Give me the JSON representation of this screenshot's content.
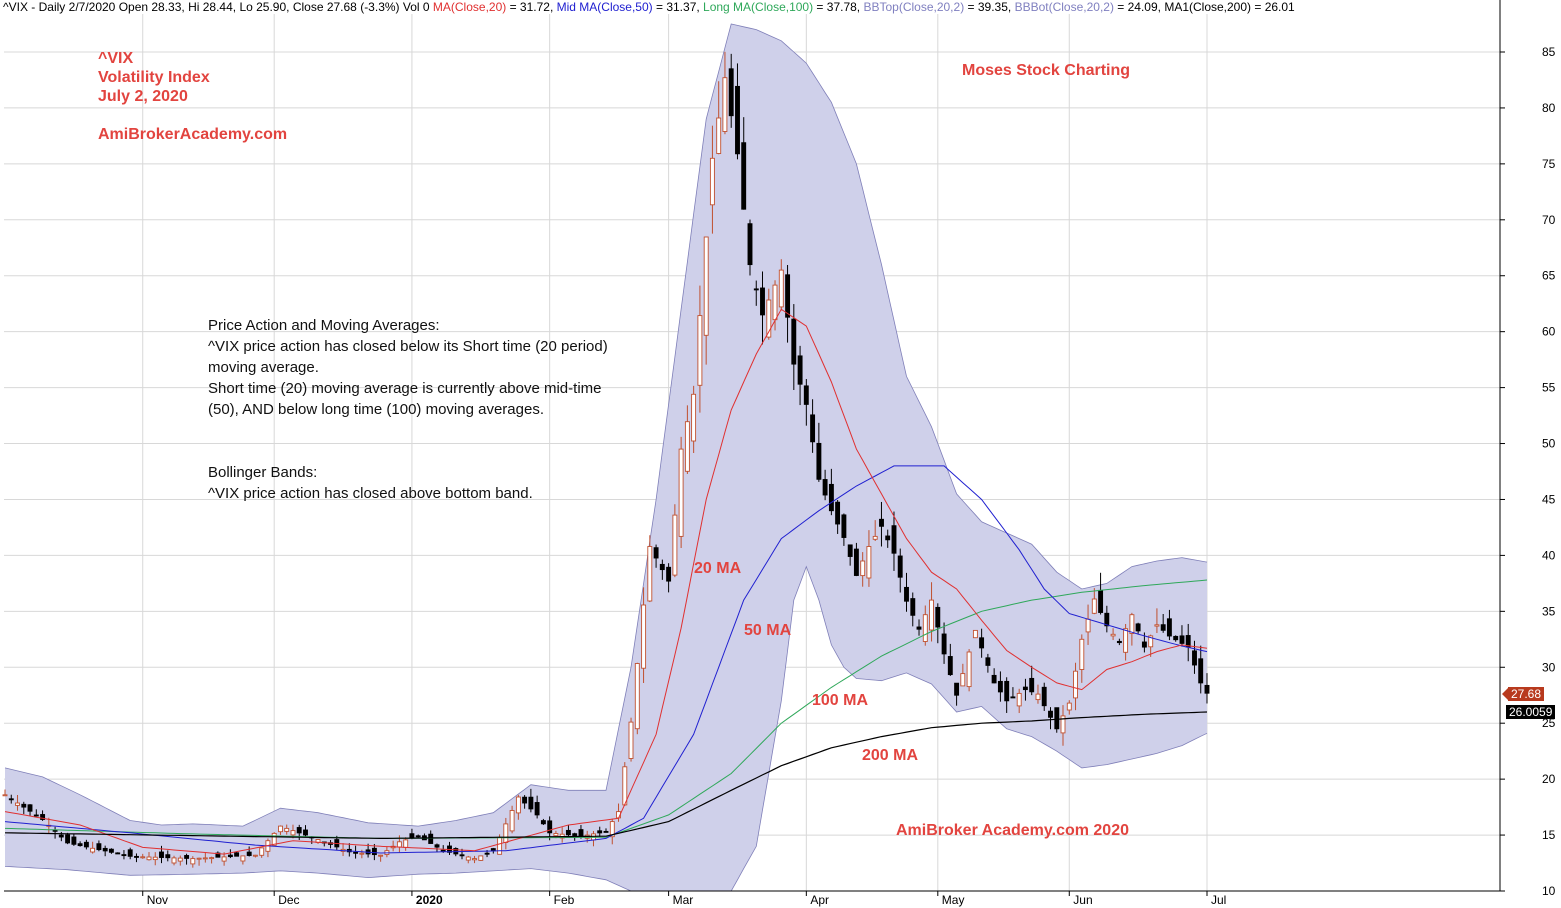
{
  "header": {
    "segments": [
      {
        "text": "^VIX - Daily 2/7/2020 Open 28.33, Hi 28.44, Lo 25.90, Close 27.68 (-3.3%) Vol 0 ",
        "color": "#000000"
      },
      {
        "text": "MA(Close,20)",
        "color": "#e03030"
      },
      {
        "text": " = 31.72, ",
        "color": "#000000"
      },
      {
        "text": "Mid MA(Close,50)",
        "color": "#2020d0"
      },
      {
        "text": " = 31.37, ",
        "color": "#000000"
      },
      {
        "text": "Long MA(Close,100)",
        "color": "#2fa85a"
      },
      {
        "text": " = 37.78, ",
        "color": "#000000"
      },
      {
        "text": "BBTop(Close,20,2)",
        "color": "#8080c0"
      },
      {
        "text": " = 39.35, ",
        "color": "#000000"
      },
      {
        "text": "BBBot(Close,20,2)",
        "color": "#8080c0"
      },
      {
        "text": " = 24.09, MA1(Close,200) = 26.01",
        "color": "#000000"
      }
    ]
  },
  "annotations": {
    "title_lines": [
      "^VIX",
      "Volatility Index",
      "July 2, 2020"
    ],
    "site": "AmiBroker Academy.com",
    "site_top": "AmiBrokerAcademy.com",
    "brand": "Moses Stock Charting",
    "footer": "AmiBroker Academy.com 2020",
    "price_action_lines": [
      "Price Action and Moving Averages:",
      "^VIX price action has closed below its Short time (20 period)",
      "moving average.",
      "Short time (20) moving average is currently above mid-time",
      "(50), AND below long time (100) moving averages."
    ],
    "bollinger_lines": [
      "Bollinger Bands:",
      "^VIX price action has closed above bottom band."
    ],
    "ma_labels": [
      "20 MA",
      "50 MA",
      "100 MA",
      "200 MA"
    ],
    "last_price": "27.68",
    "ma200_value": "26.0059"
  },
  "colors": {
    "accent_red": "#e2443f",
    "ma20": "#e03030",
    "ma50": "#2020d0",
    "ma100": "#2fa85a",
    "ma200": "#000000",
    "band_fill": "#cfd0ea",
    "band_edge": "#7f7fb8",
    "bull_candle": "#c0502f",
    "bear_candle": "#000000",
    "grid": "#d8d8d8",
    "price_tag_bg": "#b83a1e"
  },
  "chart_data": {
    "type": "candlestick",
    "title": "^VIX",
    "ylim": [
      10,
      88
    ],
    "y_ticks": [
      10,
      15,
      20,
      25,
      30,
      35,
      40,
      45,
      50,
      55,
      60,
      65,
      70,
      75,
      80,
      85
    ],
    "x_labels": [
      "Nov",
      "Dec",
      "2020",
      "Feb",
      "Mar",
      "Apr",
      "May",
      "Jun",
      "Jul"
    ],
    "x_label_index": [
      22,
      43,
      65,
      87,
      106,
      128,
      149,
      170,
      192
    ],
    "grid": true,
    "legend": "none",
    "num_bars": 193,
    "close_anchors": [
      [
        0,
        18.6
      ],
      [
        6,
        16.4
      ],
      [
        10,
        14.3
      ],
      [
        20,
        13.1
      ],
      [
        30,
        12.9
      ],
      [
        40,
        13.2
      ],
      [
        44,
        15.8
      ],
      [
        50,
        14.6
      ],
      [
        55,
        13.5
      ],
      [
        60,
        13.2
      ],
      [
        63,
        14.4
      ],
      [
        66,
        14.9
      ],
      [
        70,
        13.6
      ],
      [
        75,
        12.9
      ],
      [
        78,
        13.6
      ],
      [
        82,
        18.4
      ],
      [
        85,
        16.8
      ],
      [
        87,
        15.2
      ],
      [
        92,
        14.9
      ],
      [
        96,
        15.3
      ],
      [
        98,
        17.1
      ],
      [
        100,
        25.1
      ],
      [
        103,
        40.8
      ],
      [
        106,
        37.7
      ],
      [
        108,
        49.5
      ],
      [
        110,
        54.4
      ],
      [
        113,
        75.5
      ],
      [
        115,
        82.7
      ],
      [
        117,
        75.9
      ],
      [
        119,
        66.0
      ],
      [
        121,
        61.5
      ],
      [
        124,
        65.5
      ],
      [
        126,
        57.1
      ],
      [
        128,
        53.5
      ],
      [
        130,
        46.8
      ],
      [
        132,
        44.0
      ],
      [
        134,
        41.6
      ],
      [
        136,
        38.2
      ],
      [
        138,
        40.8
      ],
      [
        140,
        42.6
      ],
      [
        142,
        40.2
      ],
      [
        144,
        35.9
      ],
      [
        146,
        33.4
      ],
      [
        148,
        36.0
      ],
      [
        150,
        31.2
      ],
      [
        152,
        27.5
      ],
      [
        155,
        33.3
      ],
      [
        158,
        28.6
      ],
      [
        160,
        27.0
      ],
      [
        163,
        28.0
      ],
      [
        165,
        27.6
      ],
      [
        168,
        24.5
      ],
      [
        170,
        26.8
      ],
      [
        172,
        32.5
      ],
      [
        174,
        36.1
      ],
      [
        176,
        33.7
      ],
      [
        178,
        32.2
      ],
      [
        180,
        34.7
      ],
      [
        182,
        31.8
      ],
      [
        184,
        33.8
      ],
      [
        186,
        32.8
      ],
      [
        189,
        31.8
      ],
      [
        191,
        28.6
      ],
      [
        192,
        27.68
      ]
    ],
    "ma20_anchors": [
      [
        0,
        17.1
      ],
      [
        12,
        15.9
      ],
      [
        22,
        13.9
      ],
      [
        35,
        13.3
      ],
      [
        46,
        14.5
      ],
      [
        60,
        14.0
      ],
      [
        75,
        13.6
      ],
      [
        90,
        15.9
      ],
      [
        98,
        16.5
      ],
      [
        104,
        24.0
      ],
      [
        108,
        33.5
      ],
      [
        112,
        45.0
      ],
      [
        116,
        53.0
      ],
      [
        120,
        58.0
      ],
      [
        124,
        62.0
      ],
      [
        128,
        60.5
      ],
      [
        132,
        55.5
      ],
      [
        136,
        49.5
      ],
      [
        140,
        45.5
      ],
      [
        144,
        41.5
      ],
      [
        148,
        38.5
      ],
      [
        152,
        37.0
      ],
      [
        156,
        34.2
      ],
      [
        160,
        31.5
      ],
      [
        164,
        30.0
      ],
      [
        168,
        28.6
      ],
      [
        172,
        28.0
      ],
      [
        176,
        29.8
      ],
      [
        180,
        30.5
      ],
      [
        184,
        31.4
      ],
      [
        188,
        32.0
      ],
      [
        192,
        31.7
      ]
    ],
    "ma50_anchors": [
      [
        0,
        16.2
      ],
      [
        20,
        15.2
      ],
      [
        40,
        14.1
      ],
      [
        60,
        13.4
      ],
      [
        80,
        13.6
      ],
      [
        96,
        14.7
      ],
      [
        102,
        16.5
      ],
      [
        110,
        24.0
      ],
      [
        118,
        36.0
      ],
      [
        124,
        41.5
      ],
      [
        130,
        44.0
      ],
      [
        136,
        46.2
      ],
      [
        142,
        48.0
      ],
      [
        150,
        48.0
      ],
      [
        156,
        45.0
      ],
      [
        162,
        40.5
      ],
      [
        166,
        37.0
      ],
      [
        170,
        34.8
      ],
      [
        176,
        33.8
      ],
      [
        182,
        32.8
      ],
      [
        188,
        31.9
      ],
      [
        192,
        31.4
      ]
    ],
    "ma100_anchors": [
      [
        0,
        15.6
      ],
      [
        30,
        15.1
      ],
      [
        60,
        14.7
      ],
      [
        96,
        14.8
      ],
      [
        106,
        16.8
      ],
      [
        116,
        20.5
      ],
      [
        124,
        25.0
      ],
      [
        132,
        28.2
      ],
      [
        140,
        31.0
      ],
      [
        148,
        33.2
      ],
      [
        156,
        35.0
      ],
      [
        164,
        36.0
      ],
      [
        172,
        36.7
      ],
      [
        182,
        37.3
      ],
      [
        192,
        37.8
      ]
    ],
    "ma200_anchors": [
      [
        0,
        15.2
      ],
      [
        60,
        14.7
      ],
      [
        96,
        14.9
      ],
      [
        106,
        16.2
      ],
      [
        116,
        19.0
      ],
      [
        124,
        21.2
      ],
      [
        132,
        22.8
      ],
      [
        140,
        23.8
      ],
      [
        148,
        24.6
      ],
      [
        156,
        25.0
      ],
      [
        164,
        25.2
      ],
      [
        172,
        25.5
      ],
      [
        182,
        25.8
      ],
      [
        192,
        26.0
      ]
    ],
    "bbtop_anchors": [
      [
        0,
        21.0
      ],
      [
        6,
        20.2
      ],
      [
        12,
        18.6
      ],
      [
        20,
        16.3
      ],
      [
        25,
        15.9
      ],
      [
        30,
        16.0
      ],
      [
        38,
        15.8
      ],
      [
        44,
        17.4
      ],
      [
        50,
        17.0
      ],
      [
        58,
        16.1
      ],
      [
        66,
        15.8
      ],
      [
        72,
        16.3
      ],
      [
        78,
        17.0
      ],
      [
        84,
        19.5
      ],
      [
        90,
        19.0
      ],
      [
        96,
        19.0
      ],
      [
        100,
        30.0
      ],
      [
        104,
        45.0
      ],
      [
        108,
        62.0
      ],
      [
        112,
        79.0
      ],
      [
        116,
        87.5
      ],
      [
        120,
        87.0
      ],
      [
        124,
        86.0
      ],
      [
        128,
        84.0
      ],
      [
        132,
        80.5
      ],
      [
        136,
        75.0
      ],
      [
        140,
        66.0
      ],
      [
        144,
        56.0
      ],
      [
        148,
        51.5
      ],
      [
        152,
        45.5
      ],
      [
        156,
        43.0
      ],
      [
        160,
        42.0
      ],
      [
        164,
        41.0
      ],
      [
        168,
        38.5
      ],
      [
        172,
        37.0
      ],
      [
        176,
        37.5
      ],
      [
        180,
        39.0
      ],
      [
        184,
        39.5
      ],
      [
        188,
        39.8
      ],
      [
        192,
        39.4
      ]
    ],
    "bbbot_anchors": [
      [
        0,
        12.2
      ],
      [
        10,
        11.9
      ],
      [
        20,
        11.4
      ],
      [
        30,
        11.5
      ],
      [
        38,
        11.6
      ],
      [
        44,
        11.8
      ],
      [
        50,
        11.6
      ],
      [
        58,
        11.2
      ],
      [
        66,
        11.5
      ],
      [
        72,
        11.6
      ],
      [
        78,
        11.8
      ],
      [
        84,
        12.0
      ],
      [
        90,
        11.6
      ],
      [
        96,
        11.0
      ],
      [
        100,
        10.0
      ],
      [
        104,
        9.5
      ],
      [
        108,
        9.5
      ],
      [
        112,
        9.6
      ],
      [
        116,
        10.0
      ],
      [
        120,
        14.0
      ],
      [
        124,
        27.0
      ],
      [
        126,
        36.0
      ],
      [
        128,
        39.0
      ],
      [
        130,
        36.0
      ],
      [
        132,
        32.0
      ],
      [
        134,
        30.0
      ],
      [
        136,
        29.0
      ],
      [
        140,
        28.8
      ],
      [
        144,
        29.5
      ],
      [
        148,
        28.5
      ],
      [
        152,
        26.0
      ],
      [
        156,
        26.5
      ],
      [
        160,
        24.5
      ],
      [
        164,
        23.8
      ],
      [
        168,
        22.5
      ],
      [
        172,
        21.0
      ],
      [
        176,
        21.3
      ],
      [
        180,
        21.8
      ],
      [
        184,
        22.3
      ],
      [
        188,
        23.0
      ],
      [
        192,
        24.1
      ]
    ]
  }
}
